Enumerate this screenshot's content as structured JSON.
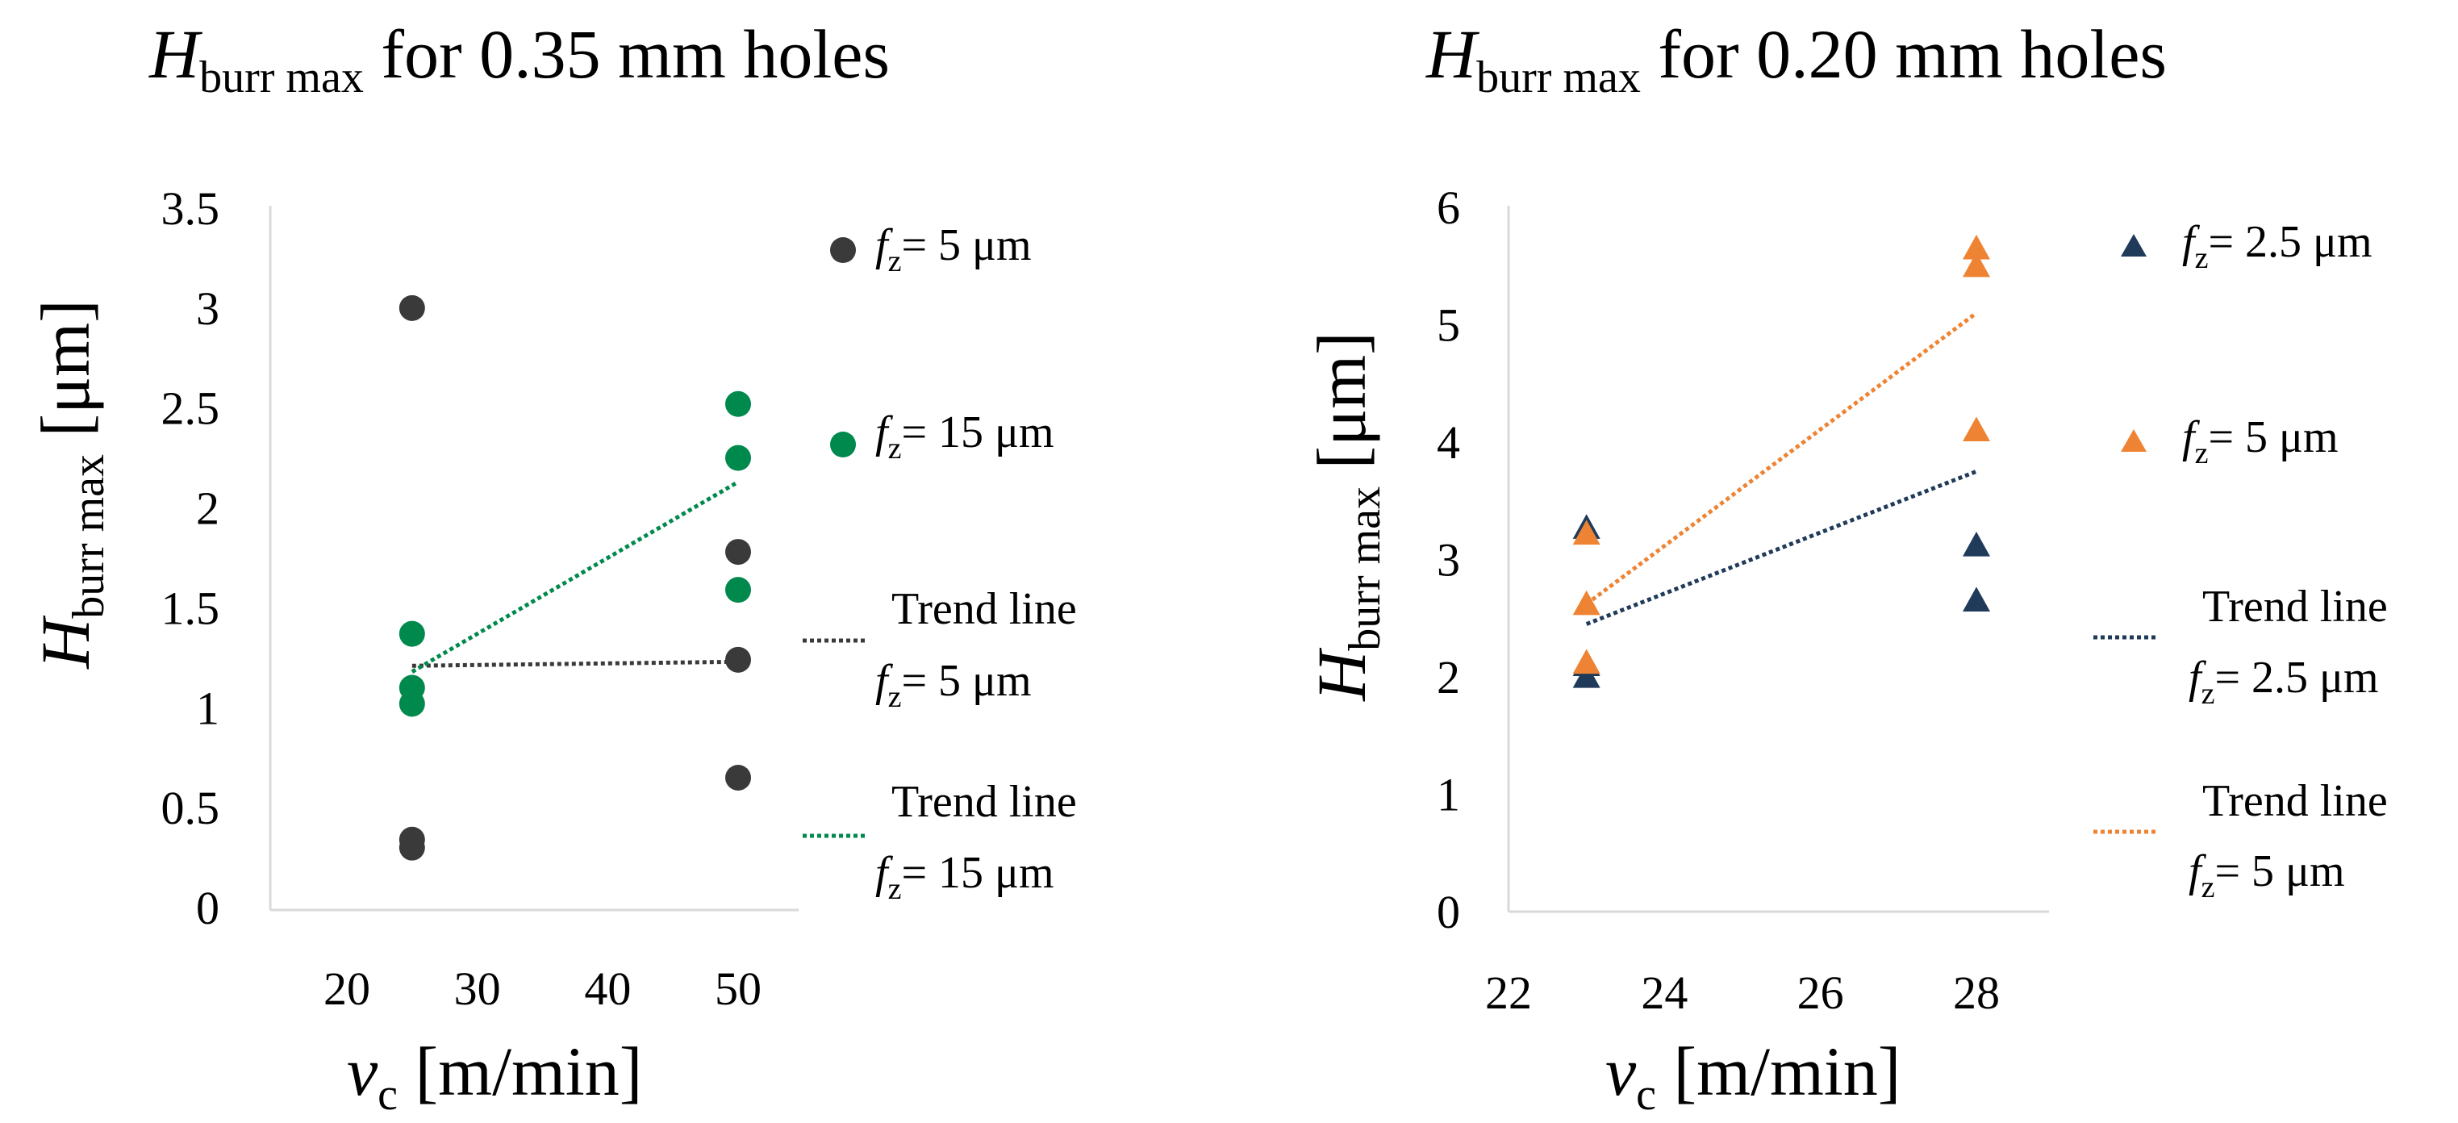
{
  "chart_data": [
    {
      "type": "scatter",
      "title": {
        "main": "H",
        "sub": "burr max",
        "rest": " for 0.35 mm  holes"
      },
      "xlabel": {
        "main": "v",
        "sub": "c",
        "rest": "  [m/min]"
      },
      "ylabel": {
        "main": "H",
        "sub": "burr max",
        "rest": " [μm]"
      },
      "xlim": [
        20,
        50
      ],
      "ylim": [
        0,
        3.5
      ],
      "x_ticks": [
        "20",
        "30",
        "40",
        "50"
      ],
      "y_ticks": [
        "0",
        "0.5",
        "1",
        "1.5",
        "2",
        "2.5",
        "3",
        "3.5"
      ],
      "grid": false,
      "legend_position": "right",
      "series": [
        {
          "name": "fz= 5 μm",
          "label": {
            "main": "f",
            "sub": "z",
            "rest": "= 5 μm"
          },
          "marker": "circle",
          "color": "#3a3a3a",
          "points": [
            [
              25,
              3.0
            ],
            [
              25,
              0.34
            ],
            [
              25,
              0.3
            ],
            [
              50,
              1.78
            ],
            [
              50,
              1.24
            ],
            [
              50,
              0.65
            ]
          ]
        },
        {
          "name": "fz= 15 μm",
          "label": {
            "main": "f",
            "sub": "z",
            "rest": "= 15 μm"
          },
          "marker": "circle",
          "color": "#00894d",
          "points": [
            [
              25,
              1.37
            ],
            [
              25,
              1.1
            ],
            [
              25,
              1.02
            ],
            [
              50,
              2.52
            ],
            [
              50,
              2.25
            ],
            [
              50,
              1.59
            ]
          ]
        }
      ],
      "trend_lines": [
        {
          "line1": "Trend line",
          "label": {
            "main": "f",
            "sub": "z",
            "rest": "= 5 μm"
          },
          "color": "#3a3a3a",
          "from": [
            25,
            1.21
          ],
          "to": [
            50,
            1.23
          ]
        },
        {
          "line1": "Trend line",
          "label": {
            "main": "f",
            "sub": "z",
            "rest": "= 15 μm"
          },
          "color": "#00894d",
          "from": [
            25,
            1.18
          ],
          "to": [
            50,
            2.13
          ]
        }
      ]
    },
    {
      "type": "scatter",
      "title": {
        "main": "H",
        "sub": "burr max",
        "rest": " for 0.20 mm holes"
      },
      "xlabel": {
        "main": "v",
        "sub": "c",
        "rest": "  [m/min]"
      },
      "ylabel": {
        "main": "H",
        "sub": "burr max",
        "rest": " [μm]"
      },
      "xlim": [
        22,
        28
      ],
      "ylim": [
        0,
        6
      ],
      "x_ticks": [
        "22",
        "24",
        "26",
        "28"
      ],
      "y_ticks": [
        "0",
        "1",
        "2",
        "3",
        "4",
        "5",
        "6"
      ],
      "grid": false,
      "legend_position": "right",
      "series": [
        {
          "name": "fz= 2.5 μm",
          "label": {
            "main": "f",
            "sub": "z",
            "rest": "= 2.5 μm"
          },
          "marker": "triangle",
          "color": "#203a5a",
          "points": [
            [
              23,
              3.27
            ],
            [
              23,
              2.1
            ],
            [
              23,
              2.0
            ],
            [
              28,
              3.12
            ],
            [
              28,
              2.65
            ]
          ]
        },
        {
          "name": "fz= 5 μm",
          "label": {
            "main": "f",
            "sub": "z",
            "rest": "= 5 μm"
          },
          "marker": "triangle",
          "color": "#ee8433",
          "points": [
            [
              23,
              3.22
            ],
            [
              23,
              2.62
            ],
            [
              23,
              2.12
            ],
            [
              28,
              5.65
            ],
            [
              28,
              5.5
            ],
            [
              28,
              4.1
            ]
          ]
        }
      ],
      "trend_lines": [
        {
          "line1": "Trend line",
          "label": {
            "main": "f",
            "sub": "z",
            "rest": "= 2.5 μm"
          },
          "color": "#203a5a",
          "from": [
            23,
            2.45
          ],
          "to": [
            28,
            3.75
          ]
        },
        {
          "line1": "Trend line",
          "label": {
            "main": "f",
            "sub": "z",
            "rest": "= 5 μm"
          },
          "color": "#ee8433",
          "from": [
            23,
            2.62
          ],
          "to": [
            28,
            5.1
          ]
        }
      ]
    }
  ]
}
